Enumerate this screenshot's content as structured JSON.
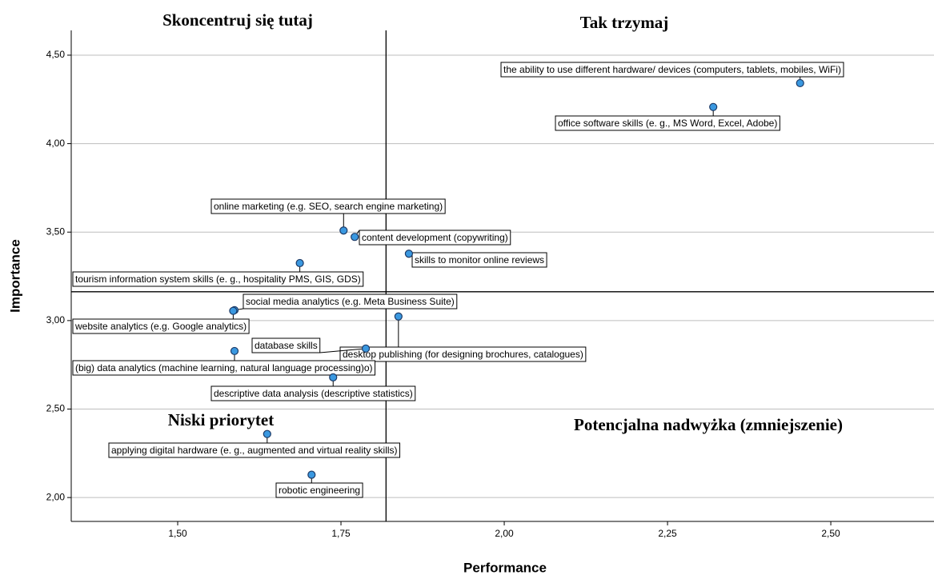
{
  "chart_data": {
    "type": "scatter",
    "xlabel": "Performance",
    "ylabel": "Importance",
    "color": "#3a98e0",
    "edge_color": "#1d3a66",
    "grid": true,
    "xlim": [
      1.337,
      2.658
    ],
    "ylim": [
      1.865,
      4.64
    ],
    "xticks": [
      {
        "value": 1.5,
        "label": "1,50"
      },
      {
        "value": 1.75,
        "label": "1,75"
      },
      {
        "value": 2.0,
        "label": "2,00"
      },
      {
        "value": 2.25,
        "label": "2,25"
      },
      {
        "value": 2.5,
        "label": "2,50"
      }
    ],
    "yticks": [
      {
        "value": 2.0,
        "label": "2,00"
      },
      {
        "value": 2.5,
        "label": "2,50"
      },
      {
        "value": 3.0,
        "label": "3,00"
      },
      {
        "value": 3.5,
        "label": "3,50"
      },
      {
        "value": 4.0,
        "label": "4,00"
      },
      {
        "value": 4.5,
        "label": "4,50"
      }
    ],
    "xref": 1.819,
    "yref": 3.163,
    "quadrant_labels": [
      "Skoncentruj się tutaj",
      "Tak trzymaj",
      "Niski priorytet",
      "Potencjalna nadwyżka (zmniejszenie)"
    ],
    "labels": [
      "the ability to use different hardware/ devices (computers, tablets, mobiles, WiFi)",
      "office software skills (e. g., MS Word, Excel, Adobe)",
      "online marketing (e.g. SEO, search engine marketing)",
      "content development (copywriting)",
      "skills to monitor online reviews",
      "tourism information system skills (e. g., hospitality PMS, GIS, GDS)",
      "social media analytics (e.g. Meta Business Suite)",
      "website analytics (e.g. Google analytics)",
      "desktop publishing (for designing brochures, catalogues)",
      "database skills",
      "(big) data analytics (machine learning, natural language processing)o)",
      "descriptive data analysis (descriptive statistics)",
      "applying digital hardware (e. g., augmented and virtual reality skills)",
      "robotic engineering"
    ],
    "x": [
      2.453,
      2.32,
      1.754,
      1.771,
      1.854,
      1.687,
      1.587,
      1.585,
      1.838,
      1.788,
      1.587,
      1.738,
      1.637,
      1.705
    ],
    "y": [
      4.342,
      4.207,
      3.509,
      3.473,
      3.378,
      3.325,
      3.059,
      3.055,
      3.023,
      2.842,
      2.828,
      2.679,
      2.359,
      2.129
    ]
  }
}
